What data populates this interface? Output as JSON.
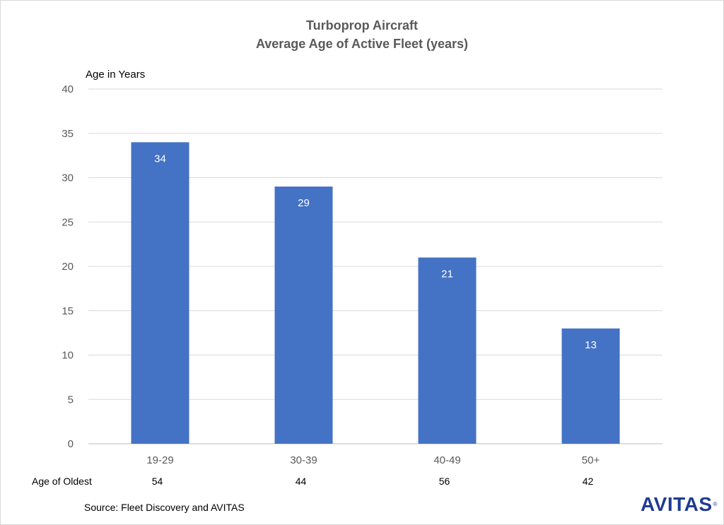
{
  "chart_data": {
    "type": "bar",
    "title": "Turboprop Aircraft",
    "subtitle": "Average Age of Active Fleet (years)",
    "ylabel": "Age in Years",
    "xlabel": "",
    "categories": [
      "19-29",
      "30-39",
      "40-49",
      "50+"
    ],
    "values": [
      34,
      29,
      21,
      13
    ],
    "ylim": [
      0,
      40
    ],
    "yticks": [
      0,
      5,
      10,
      15,
      20,
      25,
      30,
      35,
      40
    ],
    "grid": true,
    "bar_color": "#4472c4",
    "data_labels": [
      "34",
      "29",
      "21",
      "13"
    ],
    "row": {
      "label": "Age of Oldest",
      "values": [
        "54",
        "44",
        "56",
        "42"
      ]
    }
  },
  "source_text": "Source: Fleet Discovery and AVITAS",
  "logo": {
    "text": "AVITAS",
    "mark": "®",
    "color": "#1f3a93"
  }
}
